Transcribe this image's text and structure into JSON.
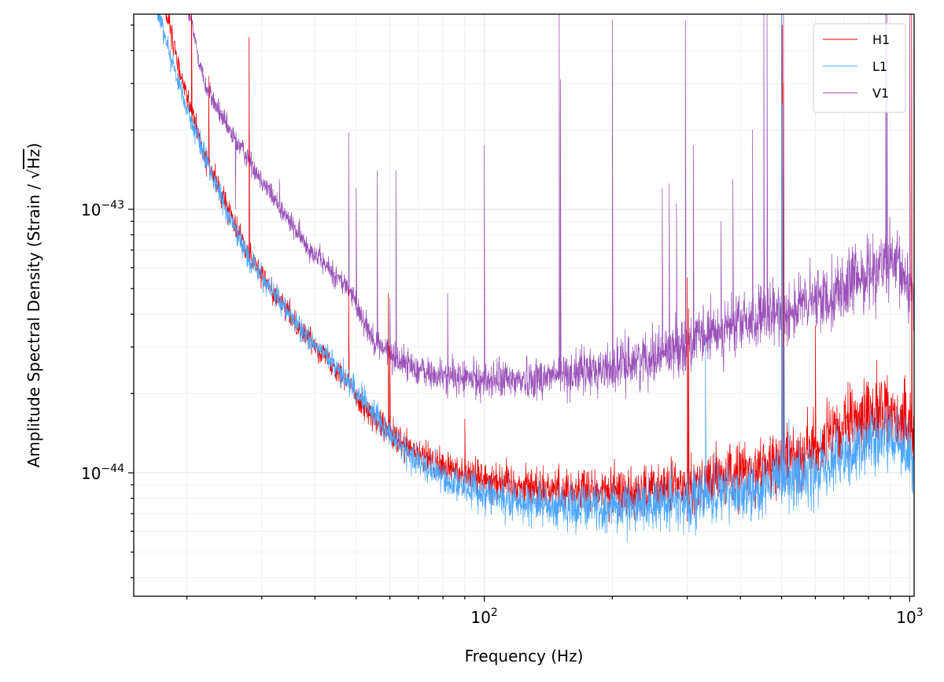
{
  "chart_data": {
    "type": "line",
    "title": "",
    "xlabel": "Frequency (Hz)",
    "ylabel_prefix": "Amplitude Spectral Density (Strain / ",
    "ylabel_sqrt": "Hz",
    "ylabel_suffix": ")",
    "xscale": "log",
    "yscale": "log",
    "xlim": [
      15,
      1024
    ],
    "ylim": [
      3.4e-45,
      5.5e-43
    ],
    "grid": true,
    "legend_position": "top-right",
    "x_major_ticks": [
      {
        "value": 100,
        "base": "10",
        "exp": "2"
      },
      {
        "value": 1000,
        "base": "10",
        "exp": "3"
      }
    ],
    "y_major_ticks": [
      {
        "value": 1e-44,
        "base": "10",
        "exp": "−44"
      },
      {
        "value": 1e-43,
        "base": "10",
        "exp": "−43"
      }
    ],
    "series": [
      {
        "name": "H1",
        "color": "#ee0000",
        "baseline": [
          [
            17,
            8e-43
          ],
          [
            19,
            3.6e-43
          ],
          [
            22,
            1.6e-43
          ],
          [
            25,
            1e-43
          ],
          [
            28,
            6.8e-44
          ],
          [
            32,
            4.8e-44
          ],
          [
            37,
            3.5e-44
          ],
          [
            45,
            2.5e-44
          ],
          [
            55,
            1.6e-44
          ],
          [
            65,
            1.25e-44
          ],
          [
            80,
            1.05e-44
          ],
          [
            100,
            9.6e-45
          ],
          [
            120,
            9e-45
          ],
          [
            150,
            8.6e-45
          ],
          [
            200,
            8.4e-45
          ],
          [
            250,
            8.5e-45
          ],
          [
            300,
            9e-45
          ],
          [
            400,
            1e-44
          ],
          [
            500,
            1.1e-44
          ],
          [
            600,
            1.25e-44
          ],
          [
            700,
            1.45e-44
          ],
          [
            800,
            1.68e-44
          ],
          [
            880,
            1.75e-44
          ],
          [
            950,
            1.58e-44
          ],
          [
            1024,
            1.4e-44
          ]
        ],
        "spikes": [
          [
            20.5,
            8e-43
          ],
          [
            22.5,
            3.2e-43
          ],
          [
            28,
            4.5e-43
          ],
          [
            29.5,
            6e-44
          ],
          [
            48,
            5e-44
          ],
          [
            59.5,
            4.8e-44
          ],
          [
            60,
            3e-44
          ],
          [
            90,
            1.6e-44
          ],
          [
            300,
            5.5e-44
          ],
          [
            302,
            4.2e-44
          ],
          [
            500,
            6e-43
          ],
          [
            502,
            5e-43
          ],
          [
            505,
            3e-43
          ],
          [
            600,
            3.6e-44
          ],
          [
            1010,
            5.5e-43
          ]
        ]
      },
      {
        "name": "L1",
        "color": "#4ba6ff",
        "baseline": [
          [
            16.5,
            7e-43
          ],
          [
            18,
            4.2e-43
          ],
          [
            20,
            2.4e-43
          ],
          [
            22,
            1.6e-43
          ],
          [
            25,
            9.5e-44
          ],
          [
            28,
            6.5e-44
          ],
          [
            32,
            4.8e-44
          ],
          [
            37,
            3.5e-44
          ],
          [
            45,
            2.5e-44
          ],
          [
            55,
            1.7e-44
          ],
          [
            65,
            1.2e-44
          ],
          [
            80,
            9.5e-45
          ],
          [
            100,
            8.4e-45
          ],
          [
            120,
            7.8e-45
          ],
          [
            150,
            7.5e-45
          ],
          [
            200,
            7.4e-45
          ],
          [
            250,
            7.6e-45
          ],
          [
            300,
            7.9e-45
          ],
          [
            400,
            8.5e-45
          ],
          [
            500,
            9.2e-45
          ],
          [
            600,
            1e-44
          ],
          [
            700,
            1.12e-44
          ],
          [
            800,
            1.3e-44
          ],
          [
            880,
            1.38e-44
          ],
          [
            950,
            1.25e-44
          ],
          [
            1024,
            1.1e-44
          ]
        ],
        "spikes": [
          [
            331,
            3.2e-44
          ],
          [
            500,
            5.5e-43
          ],
          [
            502,
            2.5e-43
          ],
          [
            507,
            3e-44
          ],
          [
            520,
            1.6e-44
          ],
          [
            1000,
            1.6e-44
          ]
        ]
      },
      {
        "name": "V1",
        "color": "#9a52b8",
        "baseline": [
          [
            20,
            6e-43
          ],
          [
            22,
            3e-43
          ],
          [
            25,
            2e-43
          ],
          [
            28,
            1.55e-43
          ],
          [
            32,
            1.1e-43
          ],
          [
            37,
            7.8e-44
          ],
          [
            42,
            6.2e-44
          ],
          [
            48,
            5e-44
          ],
          [
            55,
            3.2e-44
          ],
          [
            62,
            2.7e-44
          ],
          [
            75,
            2.35e-44
          ],
          [
            100,
            2.25e-44
          ],
          [
            120,
            2.25e-44
          ],
          [
            150,
            2.35e-44
          ],
          [
            200,
            2.5e-44
          ],
          [
            250,
            2.8e-44
          ],
          [
            300,
            3.1e-44
          ],
          [
            350,
            3.4e-44
          ],
          [
            400,
            3.7e-44
          ],
          [
            500,
            4e-44
          ],
          [
            600,
            4.5e-44
          ],
          [
            700,
            5e-44
          ],
          [
            800,
            5.8e-44
          ],
          [
            880,
            6.2e-44
          ],
          [
            950,
            5.8e-44
          ],
          [
            1024,
            4.8e-44
          ]
        ],
        "spikes": [
          [
            26,
            1e-43
          ],
          [
            28,
            2e-43
          ],
          [
            33,
            1.3e-43
          ],
          [
            48,
            1.95e-43
          ],
          [
            50,
            1.2e-43
          ],
          [
            56,
            1.4e-43
          ],
          [
            62,
            1.4e-43
          ],
          [
            60,
            4.6e-44
          ],
          [
            64,
            3e-44
          ],
          [
            82,
            4.8e-44
          ],
          [
            100,
            1.75e-43
          ],
          [
            150,
            5.5e-43
          ],
          [
            151,
            3.1e-43
          ],
          [
            200,
            5.2e-43
          ],
          [
            262,
            1.2e-43
          ],
          [
            272,
            1.25e-43
          ],
          [
            283,
            1.05e-43
          ],
          [
            297,
            5.2e-43
          ],
          [
            310,
            1.75e-43
          ],
          [
            360,
            9e-44
          ],
          [
            384,
            1.3e-43
          ],
          [
            427,
            2e-43
          ],
          [
            454,
            5.5e-43
          ],
          [
            462,
            5.5e-43
          ],
          [
            500,
            5.5e-43
          ],
          [
            505,
            5.5e-43
          ],
          [
            878,
            5.5e-43
          ],
          [
            884,
            5.5e-43
          ],
          [
            1000,
            5.5e-43
          ]
        ]
      }
    ]
  }
}
